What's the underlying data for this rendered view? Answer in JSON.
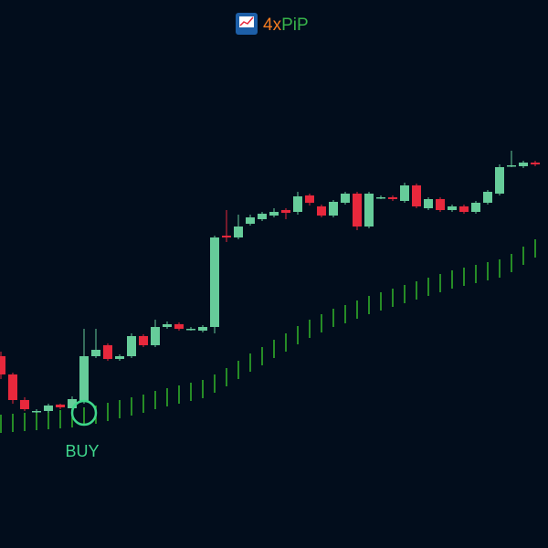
{
  "chart_data": {
    "type": "candlestick",
    "brand": [
      "4x",
      "PiP"
    ],
    "brand_colors": [
      "#f47b20",
      "#37b34a"
    ],
    "annotation": "BUY",
    "annotation_color": "#3fd68c",
    "ylim": [
      0,
      600
    ],
    "up_color": "#66cc9a",
    "down_color": "#e8283c",
    "open": [
      210,
      190,
      162,
      150,
      150,
      157,
      153,
      160,
      210,
      222,
      207,
      210,
      232,
      222,
      242,
      245,
      240,
      238,
      242,
      342,
      340,
      355,
      360,
      364,
      370,
      368,
      386,
      374,
      364,
      378,
      388,
      352,
      384,
      384,
      380,
      397,
      372,
      382,
      370,
      374,
      368,
      378,
      388,
      419,
      418,
      422
    ],
    "high": [
      215,
      192,
      165,
      152,
      158,
      158,
      166,
      240,
      240,
      224,
      212,
      235,
      234,
      250,
      248,
      247,
      242,
      244,
      342,
      370,
      365,
      365,
      368,
      372,
      372,
      390,
      388,
      376,
      381,
      390,
      390,
      390,
      386,
      386,
      400,
      399,
      384,
      384,
      376,
      376,
      380,
      392,
      420,
      435,
      424,
      424
    ],
    "low": [
      185,
      158,
      150,
      148,
      148,
      152,
      150,
      158,
      208,
      205,
      205,
      208,
      220,
      220,
      240,
      238,
      238,
      236,
      235,
      335,
      338,
      353,
      358,
      362,
      360,
      365,
      375,
      362,
      362,
      376,
      348,
      350,
      382,
      380,
      378,
      372,
      370,
      368,
      368,
      366,
      366,
      376,
      386,
      417,
      416,
      418
    ],
    "close": [
      190,
      162,
      152,
      150,
      156,
      154,
      163,
      210,
      217,
      207,
      210,
      232,
      222,
      242,
      245,
      240,
      240,
      242,
      340,
      340,
      352,
      362,
      366,
      368,
      367,
      385,
      378,
      364,
      379,
      388,
      352,
      388,
      384,
      382,
      397,
      374,
      382,
      370,
      374,
      368,
      378,
      390,
      417,
      419,
      422,
      420
    ],
    "stop": {
      "color": "#3ad12c",
      "values": [
        146,
        147,
        148,
        149,
        150,
        151,
        152,
        154,
        156,
        159,
        162,
        165,
        168,
        172,
        175,
        178,
        181,
        184,
        190,
        197,
        205,
        213,
        220,
        228,
        235,
        243,
        250,
        256,
        262,
        266,
        271,
        276,
        280,
        284,
        288,
        292,
        296,
        300,
        304,
        307,
        310,
        313,
        316,
        322,
        330,
        338
      ]
    }
  }
}
